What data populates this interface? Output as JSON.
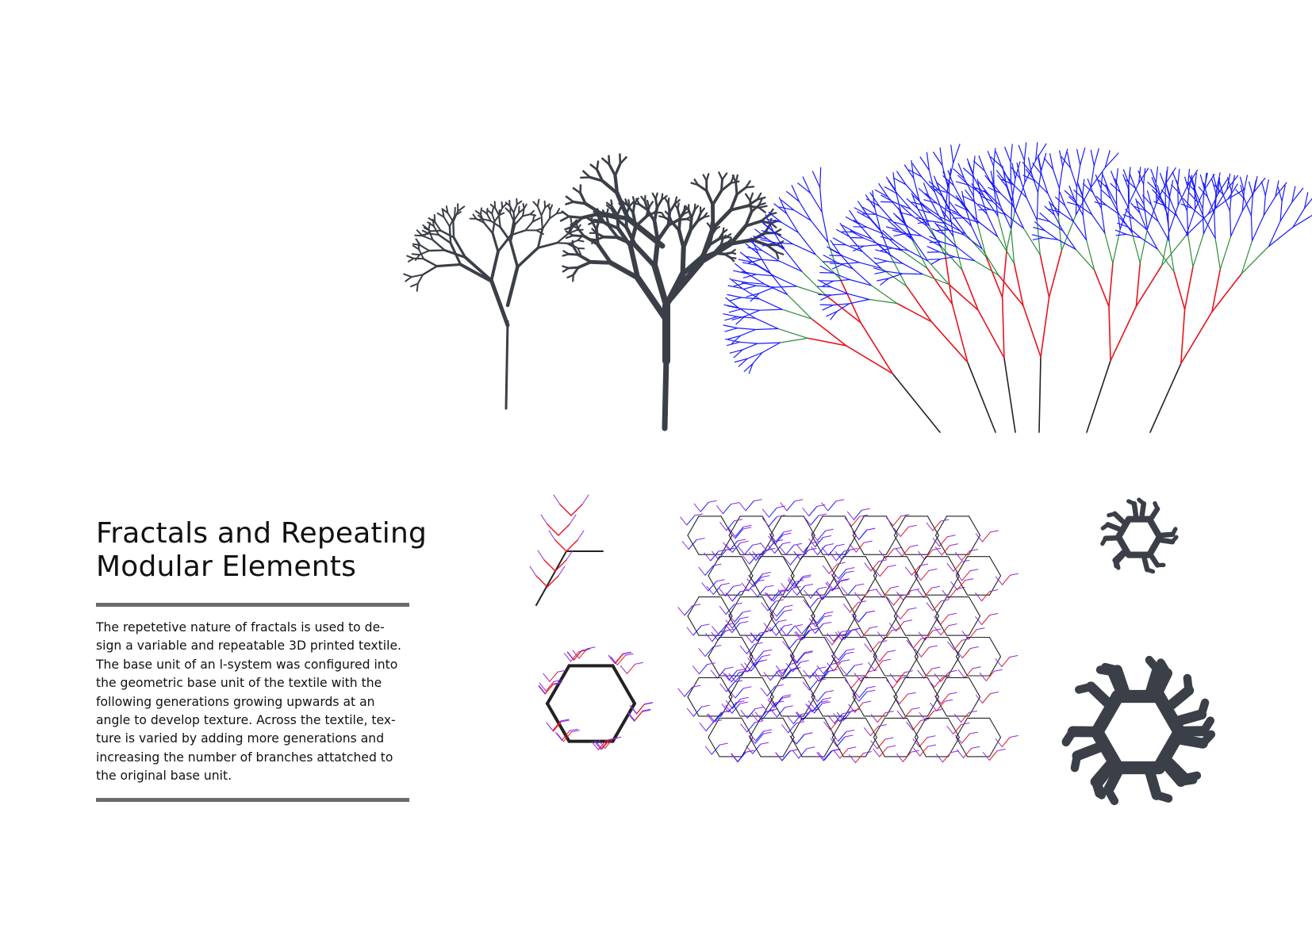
{
  "heading": {
    "line1": "Fractals and Repeating",
    "line2": "Modular Elements"
  },
  "body": {
    "lines": [
      "The repetetive nature of fractals is used to de-",
      "sign a variable and repeatable 3D printed textile.",
      "The base unit of an l-system was configured into",
      "the geometric base unit of the textile with the",
      "following generations growing upwards at an",
      "angle to develop texture. Across the textile, tex-",
      "ture is varied by adding more generations and",
      "increasing the number of branches attatched to",
      "the original base unit."
    ]
  },
  "colors": {
    "rule": "#6b6b6b",
    "print": "#3b3f47",
    "gen1": "#222222",
    "gen2": "#e8141e",
    "gen3": "#2e8b3a",
    "gen4": "#1a1aff",
    "gen5": "#8a2be2"
  },
  "figures": [
    {
      "name": "printed-branch-small",
      "icon": "3d-printed-fractal-branch"
    },
    {
      "name": "printed-branch-large",
      "icon": "3d-printed-fractal-tree"
    },
    {
      "name": "l-system-trees-diagram",
      "icon": "l-system-generations"
    },
    {
      "name": "base-unit-single-branch",
      "icon": "l-system-base-unit"
    },
    {
      "name": "hexagon-base-unit",
      "icon": "hexagon-fractal-unit"
    },
    {
      "name": "hexagonal-textile-pattern",
      "icon": "tessellated-hex-textile"
    },
    {
      "name": "printed-hex-module-small",
      "icon": "3d-printed-hex-module"
    },
    {
      "name": "printed-hex-module-large",
      "icon": "3d-printed-hex-module"
    }
  ]
}
